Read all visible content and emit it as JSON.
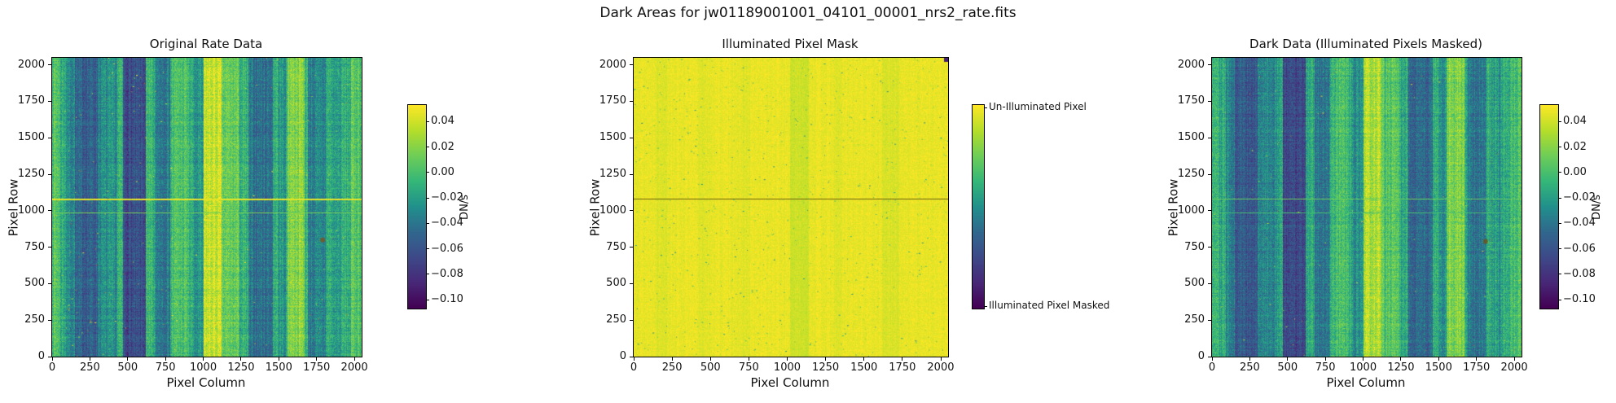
{
  "chart_data": {
    "type": "heatmap",
    "title": "Dark Areas for jw01189001001_04101_00001_nrs2_rate.fits",
    "xlabel": "Pixel Column",
    "ylabel": "Pixel Row",
    "x_range": [
      0,
      2048
    ],
    "y_range": [
      0,
      2048
    ],
    "xticks": [
      0,
      250,
      500,
      750,
      1000,
      1250,
      1500,
      1750,
      2000
    ],
    "yticks": [
      0,
      250,
      500,
      750,
      1000,
      1250,
      1500,
      1750,
      2000
    ],
    "grid": false,
    "colormap": "viridis",
    "colormap_stops": [
      [
        0.0,
        "#440154"
      ],
      [
        0.125,
        "#482878"
      ],
      [
        0.25,
        "#3e4a89"
      ],
      [
        0.375,
        "#31688e"
      ],
      [
        0.5,
        "#21918c"
      ],
      [
        0.625,
        "#35b779"
      ],
      [
        0.75,
        "#6ece58"
      ],
      [
        0.875,
        "#b5de2b"
      ],
      [
        1.0,
        "#fde725"
      ]
    ],
    "panels": [
      {
        "title": "Original Rate Data",
        "colorbar": {
          "label": "DN/s",
          "vmin": -0.107,
          "vmax": 0.053,
          "ticks": [
            {
              "v": 0.04,
              "label": "0.04"
            },
            {
              "v": 0.02,
              "label": "0.02"
            },
            {
              "v": 0.0,
              "label": "0.00"
            },
            {
              "v": -0.02,
              "label": "−0.02"
            },
            {
              "v": -0.04,
              "label": "−0.04"
            },
            {
              "v": -0.06,
              "label": "−0.06"
            },
            {
              "v": -0.08,
              "label": "−0.08"
            },
            {
              "v": -0.1,
              "label": "−0.10"
            }
          ]
        },
        "image": {
          "seed": 7,
          "base": 0.6,
          "col_noise": 0.07,
          "row_noise": 0.035,
          "pix_noise": 0.1,
          "bands": [
            [
              0,
              50,
              0.1
            ],
            [
              90,
              150,
              -0.12
            ],
            [
              150,
              300,
              -0.26
            ],
            [
              300,
              430,
              -0.12
            ],
            [
              470,
              620,
              -0.34
            ],
            [
              680,
              780,
              -0.16
            ],
            [
              790,
              900,
              0.07
            ],
            [
              930,
              1000,
              -0.1
            ],
            [
              1000,
              1120,
              0.3
            ],
            [
              1120,
              1240,
              0.12
            ],
            [
              1300,
              1460,
              -0.2
            ],
            [
              1500,
              1550,
              -0.08
            ],
            [
              1560,
              1670,
              0.2
            ],
            [
              1690,
              1810,
              -0.15
            ],
            [
              1850,
              1920,
              -0.06
            ],
            [
              1980,
              2048,
              0.1
            ]
          ],
          "hlines": [
            {
              "row": 1083,
              "value": 1.0,
              "thickness": 2
            },
            {
              "row": 990,
              "value": 0.8,
              "thickness": 1
            }
          ],
          "speckles": {
            "count": 150,
            "value_min": 0.85,
            "value_max": 1.0
          },
          "warm_speckles": {
            "count": 110,
            "color": "#c8832a"
          },
          "blobs": [
            {
              "col": 1790,
              "row": 800,
              "radius": 3,
              "color": "#7a5620"
            }
          ]
        }
      },
      {
        "title": "Illuminated Pixel Mask",
        "colorbar": {
          "label": "",
          "ticks": [
            {
              "frac": 0.012,
              "label": "Un-Illuminated Pixel"
            },
            {
              "frac": 0.988,
              "label": "Illuminated Pixel Masked"
            }
          ]
        },
        "image": {
          "seed": 13,
          "base": 0.965,
          "col_noise": 0.012,
          "row_noise": 0.006,
          "pix_noise": 0.035,
          "bands": [
            [
              150,
              220,
              -0.02
            ],
            [
              420,
              500,
              -0.015
            ],
            [
              680,
              760,
              -0.015
            ],
            [
              1020,
              1140,
              -0.05
            ],
            [
              1300,
              1360,
              -0.02
            ],
            [
              1620,
              1730,
              -0.03
            ]
          ],
          "hlines": [
            {
              "row": 1083,
              "thickness": 1,
              "color": "#6e6414"
            }
          ],
          "speckles": {
            "count": 650,
            "value_min": 0.45,
            "value_max": 0.8
          },
          "corner_patch": {
            "col_min": 2022,
            "row_min": 2022,
            "value": 0.1
          }
        }
      },
      {
        "title": "Dark Data (Illuminated Pixels Masked)",
        "colorbar": {
          "label": "DN/s",
          "vmin": -0.107,
          "vmax": 0.053,
          "ticks": [
            {
              "v": 0.04,
              "label": "0.04"
            },
            {
              "v": 0.02,
              "label": "0.02"
            },
            {
              "v": 0.0,
              "label": "0.00"
            },
            {
              "v": -0.02,
              "label": "−0.02"
            },
            {
              "v": -0.04,
              "label": "−0.04"
            },
            {
              "v": -0.06,
              "label": "−0.06"
            },
            {
              "v": -0.08,
              "label": "−0.08"
            },
            {
              "v": -0.1,
              "label": "−0.10"
            }
          ]
        },
        "image": {
          "seed": 29,
          "base": 0.58,
          "col_noise": 0.07,
          "row_noise": 0.035,
          "pix_noise": 0.1,
          "bands": [
            [
              0,
              50,
              0.08
            ],
            [
              90,
              150,
              -0.12
            ],
            [
              150,
              300,
              -0.26
            ],
            [
              300,
              430,
              -0.12
            ],
            [
              470,
              620,
              -0.34
            ],
            [
              680,
              780,
              -0.16
            ],
            [
              790,
              900,
              0.07
            ],
            [
              930,
              1000,
              -0.1
            ],
            [
              1000,
              1120,
              0.28
            ],
            [
              1120,
              1240,
              0.12
            ],
            [
              1300,
              1460,
              -0.2
            ],
            [
              1500,
              1550,
              -0.08
            ],
            [
              1560,
              1670,
              0.2
            ],
            [
              1690,
              1810,
              -0.15
            ],
            [
              1850,
              1920,
              -0.06
            ],
            [
              1980,
              2048,
              0.08
            ]
          ],
          "hlines": [
            {
              "row": 1083,
              "value": 0.78,
              "thickness": 1
            },
            {
              "row": 990,
              "value": 0.7,
              "thickness": 1
            }
          ],
          "speckles": {
            "count": 90,
            "value_min": 0.82,
            "value_max": 0.98
          },
          "warm_speckles": {
            "count": 50,
            "color": "#b9782a"
          },
          "blobs": [
            {
              "col": 1810,
              "row": 790,
              "radius": 3,
              "color": "#6b5420"
            }
          ]
        }
      }
    ]
  }
}
